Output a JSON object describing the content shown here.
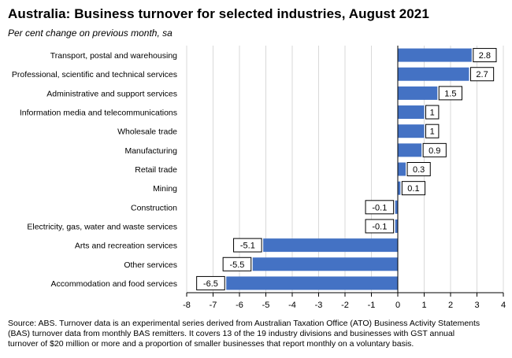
{
  "title": "Australia:  Business turnover for selected industries, August 2021",
  "subtitle": "Per cent change on previous month, sa",
  "footnote": [
    "Source: ABS.  Turnover data is an experimental series derived from Australian Taxation Office (ATO) Business Activity Statements",
    "(BAS) turnover data from monthly BAS remitters.  It covers 13 of the 19 industry divisions and businesses with GST annual",
    "turnover of $20 million or more and a proportion of smaller businesses that report monthly on a voluntary basis."
  ],
  "colors": {
    "bar": "#4472C4",
    "grid": "#d9d9d9",
    "axis": "#000000"
  },
  "chart_data": {
    "type": "bar",
    "orientation": "horizontal",
    "title": "Australia:  Business turnover for selected industries, August 2021",
    "subtitle": "Per cent change on previous month, sa",
    "categories": [
      "Transport, postal and warehousing",
      "Professional, scientific and technical services",
      "Administrative and support services",
      "Information media and telecommunications",
      "Wholesale trade",
      "Manufacturing",
      "Retail trade",
      "Mining",
      "Construction",
      "Electricity, gas, water and waste services",
      "Arts and recreation services",
      "Other services",
      "Accommodation and food services"
    ],
    "values": [
      2.8,
      2.7,
      1.5,
      1,
      1,
      0.9,
      0.3,
      0.1,
      -0.1,
      -0.1,
      -5.1,
      -5.5,
      -6.5
    ],
    "value_labels": [
      "2.8",
      "2.7",
      "1.5",
      "1",
      "1",
      "0.9",
      "0.3",
      "0.1",
      "-0.1",
      "-0.1",
      "-5.1",
      "-5.5",
      "-6.5"
    ],
    "xlim": [
      -8,
      4
    ],
    "xticks": [
      "-8",
      "-7",
      "-6",
      "-5",
      "-4",
      "-3",
      "-2",
      "-1",
      "0",
      "1",
      "2",
      "3",
      "4"
    ],
    "xlabel": "",
    "ylabel": "",
    "grid": "vertical"
  }
}
